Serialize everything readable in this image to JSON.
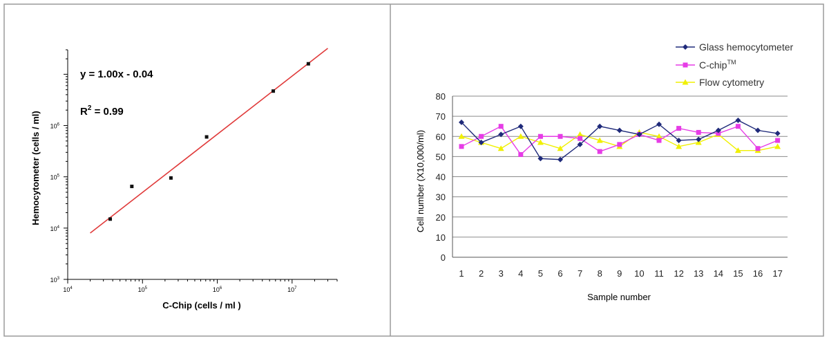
{
  "chart_data": [
    {
      "type": "scatter",
      "xlabel": "C-Chip (cells / ml )",
      "ylabel": "Hemocytometer (cells / ml)",
      "x_scale": "log",
      "y_scale": "log",
      "xlim": [
        10000,
        40000000
      ],
      "ylim": [
        1000,
        30000000
      ],
      "x_ticks": [
        {
          "value": 10000,
          "label": "10",
          "exp": "4"
        },
        {
          "value": 100000,
          "label": "10",
          "exp": "5"
        },
        {
          "value": 1000000,
          "label": "10",
          "exp": "6"
        },
        {
          "value": 10000000,
          "label": "10",
          "exp": "7"
        }
      ],
      "y_ticks": [
        {
          "value": 1000,
          "label": "10",
          "exp": "3"
        },
        {
          "value": 10000,
          "label": "10",
          "exp": "4"
        },
        {
          "value": 100000,
          "label": "10",
          "exp": "5"
        },
        {
          "value": 1000000,
          "label": "10",
          "exp": "6"
        }
      ],
      "points": [
        {
          "x": 37000,
          "y": 15000
        },
        {
          "x": 72000,
          "y": 65000
        },
        {
          "x": 240000,
          "y": 95000
        },
        {
          "x": 720000,
          "y": 600000
        },
        {
          "x": 5600000,
          "y": 4700000
        },
        {
          "x": 16500000,
          "y": 16000000
        }
      ],
      "fit_line": {
        "x": [
          20000,
          30000000
        ],
        "y": [
          8000,
          32000000
        ],
        "color": "#e03a3a"
      },
      "annotations": {
        "equation": "y = 1.00x - 0.04",
        "r2_prefix": "R",
        "r2_sup": "2",
        "r2_suffix": " = 0.99"
      },
      "grid": false
    },
    {
      "type": "line",
      "xlabel": "Sample number",
      "ylabel": "Cell number (X10,000/ml)",
      "categories": [
        "1",
        "2",
        "3",
        "4",
        "5",
        "6",
        "7",
        "8",
        "9",
        "10",
        "11",
        "12",
        "13",
        "14",
        "15",
        "16",
        "17"
      ],
      "ylim": [
        0,
        80
      ],
      "y_ticks": [
        0,
        10,
        20,
        30,
        40,
        50,
        60,
        70,
        80
      ],
      "grid": true,
      "legend_position": "top-right",
      "series": [
        {
          "name": "Glass hemocytometer",
          "color": "#1f2a7a",
          "marker": "diamond",
          "values": [
            67,
            57,
            61,
            65,
            49,
            48.5,
            56,
            65,
            63,
            61,
            66,
            58,
            58.5,
            63,
            68,
            63,
            61.5
          ]
        },
        {
          "name": "C-chip",
          "name_sup": "TM",
          "color": "#e63ce6",
          "marker": "square",
          "values": [
            55,
            60,
            65,
            51,
            60,
            60,
            59,
            52.5,
            56,
            61,
            58,
            64,
            62,
            61.5,
            65,
            54,
            58
          ]
        },
        {
          "name": "Flow cytometry",
          "color": "#f0f000",
          "marker": "triangle",
          "values": [
            60,
            57,
            54,
            60,
            57,
            54,
            61,
            58,
            55,
            62,
            60,
            55,
            57,
            61,
            53,
            53,
            55
          ]
        }
      ]
    }
  ]
}
